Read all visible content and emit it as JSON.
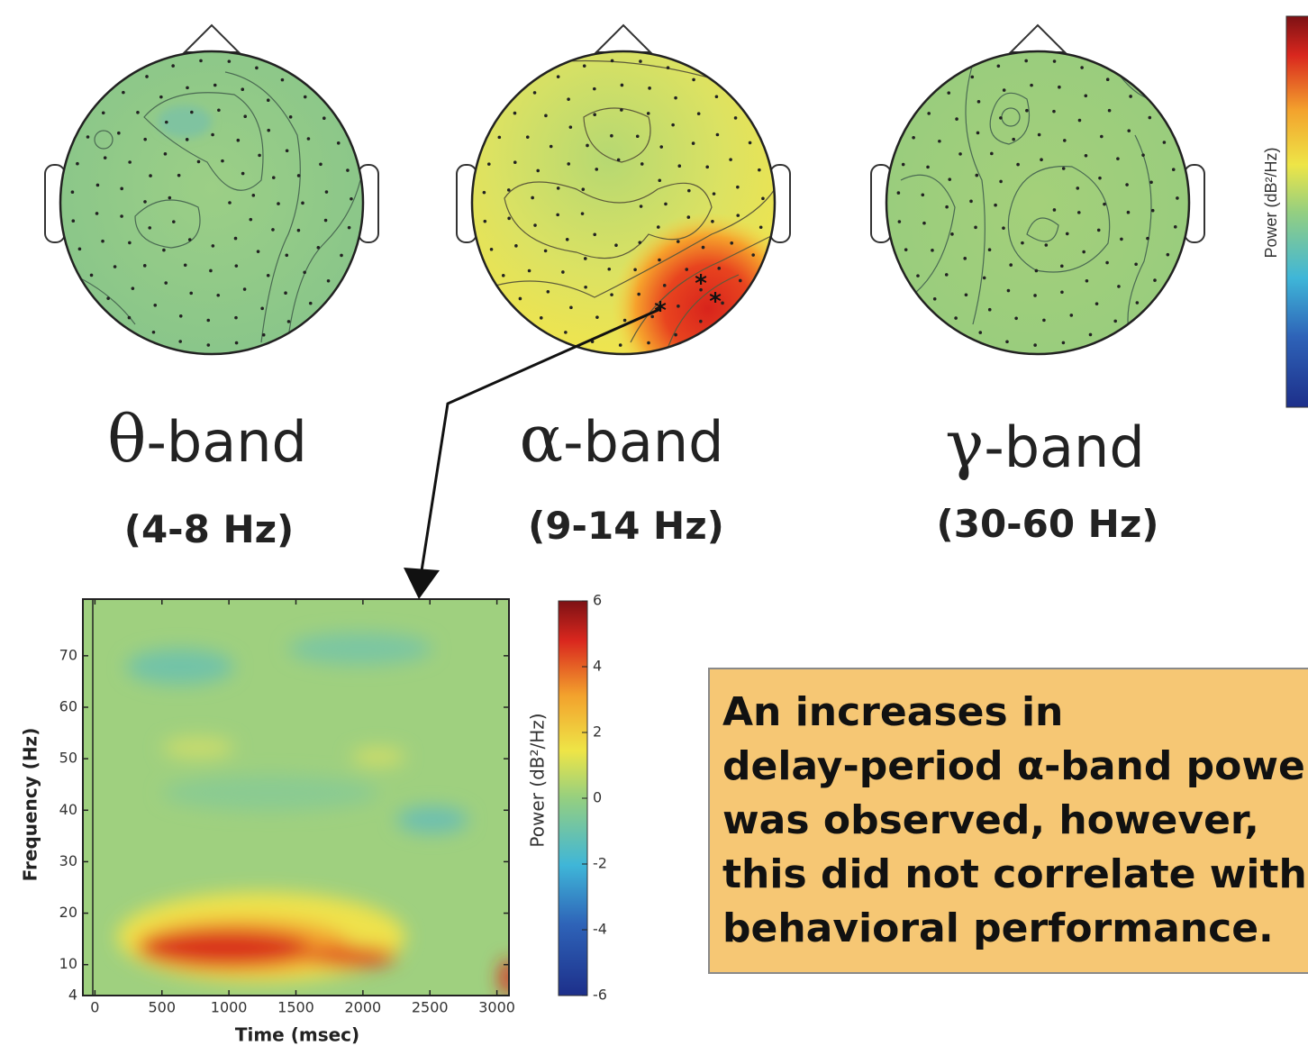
{
  "topomaps": [
    {
      "symbol": "θ",
      "label": "-band",
      "range": "(4-8 Hz)"
    },
    {
      "symbol": "α",
      "label": "-band",
      "range": "(9-14 Hz)"
    },
    {
      "symbol": "γ",
      "label": "-band",
      "range": "(30-60 Hz)"
    }
  ],
  "top_colorbar": {
    "label": "Power (dB²/Hz)"
  },
  "spectrogram": {
    "xlabel": "Time (msec)",
    "ylabel": "Frequency (Hz)",
    "xlim": [
      -90,
      3090
    ],
    "xticks": [
      0,
      500,
      1000,
      1500,
      2000,
      2500,
      3000
    ],
    "ylim": [
      4,
      81
    ],
    "yticks": [
      4,
      10,
      20,
      30,
      40,
      50,
      60,
      70
    ]
  },
  "colorbar": {
    "label": "Power (dB²/Hz)",
    "lim": [
      -6,
      6
    ],
    "ticks": [
      -6,
      -4,
      -2,
      0,
      2,
      4,
      6
    ]
  },
  "note": {
    "lines": [
      "An increases in",
      "delay-period α-band power",
      "was observed, however,",
      "this did not correlate with",
      "behavioral performance."
    ]
  }
}
